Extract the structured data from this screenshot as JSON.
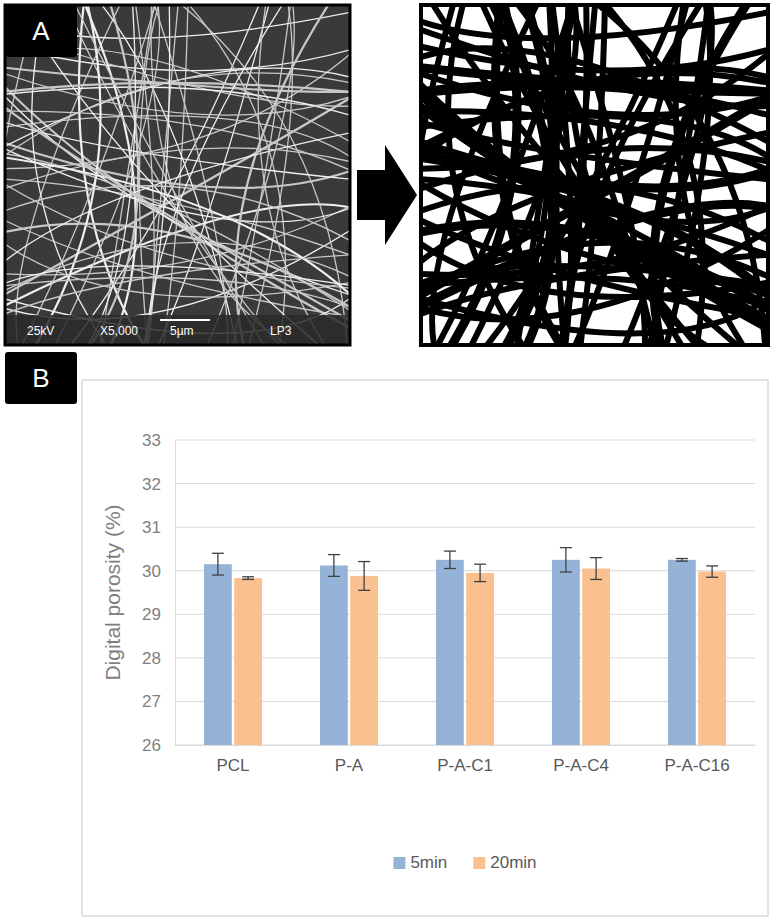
{
  "panels": [
    "A",
    "B"
  ],
  "sem_image": {
    "labels": [
      "25kV",
      "X5,000",
      "5µm",
      "LP3"
    ]
  },
  "chart_data": {
    "type": "bar",
    "categories": [
      "PCL",
      "P-A",
      "P-A-C1",
      "P-A-C4",
      "P-A-C16"
    ],
    "series": [
      {
        "name": "5min",
        "color": "#95b3d7",
        "values": [
          30.15,
          30.12,
          30.25,
          30.25,
          30.25
        ],
        "errors": [
          0.25,
          0.25,
          0.2,
          0.28,
          0.03
        ]
      },
      {
        "name": "20min",
        "color": "#fac090",
        "values": [
          29.83,
          29.88,
          29.95,
          30.05,
          29.98
        ],
        "errors": [
          0.03,
          0.33,
          0.2,
          0.25,
          0.13
        ]
      }
    ],
    "y_label": "Digital porosity (%)",
    "ylim": [
      26,
      33
    ],
    "yticks": [
      26,
      27,
      28,
      29,
      30,
      31,
      32,
      33
    ],
    "grid": true,
    "legend": "bottom"
  }
}
